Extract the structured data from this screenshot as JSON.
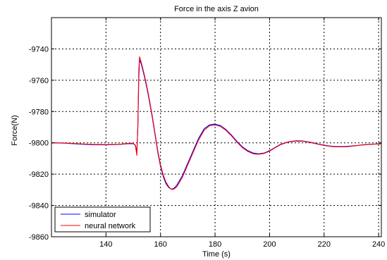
{
  "chart_data": {
    "type": "line",
    "title": "Force in the axis Z avion",
    "xlabel": "Time (s)",
    "ylabel": "Force(N)",
    "xlim": [
      120,
      241
    ],
    "ylim": [
      -9860,
      -9720
    ],
    "xticks": [
      140,
      160,
      180,
      200,
      220,
      240
    ],
    "yticks": [
      -9860,
      -9840,
      -9820,
      -9800,
      -9780,
      -9760,
      -9740
    ],
    "grid": true,
    "legend_position": "bottom-left",
    "series": [
      {
        "name": "simulator",
        "color": "#0000ff",
        "x": [
          120,
          125,
          130,
          135,
          140,
          145,
          148,
          150,
          150.8,
          151.3,
          151.7,
          152.0,
          152.3,
          152.6,
          153,
          154,
          155,
          156,
          157,
          158,
          159,
          160,
          161,
          162,
          163,
          164,
          165,
          166,
          168,
          170,
          172,
          174,
          176,
          178,
          180,
          182,
          184,
          186,
          188,
          190,
          192,
          194,
          196,
          198,
          200,
          202,
          204,
          206,
          208,
          210,
          212,
          214,
          216,
          218,
          220,
          222,
          224,
          226,
          228,
          230,
          232,
          234,
          236,
          238,
          240,
          241
        ],
        "y": [
          -9800,
          -9800.2,
          -9800.8,
          -9801.2,
          -9801.3,
          -9801,
          -9800.6,
          -9800.5,
          -9801.5,
          -9806,
          -9790,
          -9760,
          -9747,
          -9748,
          -9750,
          -9757,
          -9765,
          -9774,
          -9784,
          -9795,
          -9806,
          -9815,
          -9821.5,
          -9826,
          -9828.5,
          -9829.6,
          -9829,
          -9827,
          -9821,
          -9813,
          -9805,
          -9797,
          -9791,
          -9788.5,
          -9788,
          -9789,
          -9791.5,
          -9795,
          -9799,
          -9802.5,
          -9805,
          -9806.5,
          -9807,
          -9806.5,
          -9805,
          -9803,
          -9801,
          -9799.8,
          -9799,
          -9798.7,
          -9798.8,
          -9799.3,
          -9800,
          -9800.8,
          -9801.5,
          -9802,
          -9802.3,
          -9802.4,
          -9802.3,
          -9802,
          -9801.7,
          -9801.3,
          -9801,
          -9800.8,
          -9800.6,
          -9800.5
        ]
      },
      {
        "name": "neural network",
        "color": "#ff0000",
        "x": [
          120,
          125,
          130,
          135,
          140,
          145,
          148,
          150,
          150.8,
          151.3,
          151.7,
          152.0,
          152.3,
          152.6,
          153,
          154,
          155,
          156,
          157,
          158,
          159,
          160,
          161,
          162,
          163,
          164,
          165,
          166,
          168,
          170,
          172,
          174,
          176,
          178,
          180,
          182,
          184,
          186,
          188,
          190,
          192,
          194,
          196,
          198,
          200,
          202,
          204,
          206,
          208,
          210,
          212,
          214,
          216,
          218,
          220,
          222,
          224,
          226,
          228,
          230,
          232,
          234,
          236,
          238,
          240,
          241
        ],
        "y": [
          -9800,
          -9800.1,
          -9800.6,
          -9801,
          -9801.1,
          -9800.9,
          -9800.4,
          -9800.2,
          -9801.8,
          -9808,
          -9788,
          -9755,
          -9745,
          -9746.5,
          -9749,
          -9756,
          -9764,
          -9773,
          -9783,
          -9794,
          -9805,
          -9814,
          -9820.5,
          -9825,
          -9828,
          -9829.8,
          -9829.5,
          -9828,
          -9822,
          -9814,
          -9806,
          -9798,
          -9792,
          -9789,
          -9788.6,
          -9789.5,
          -9792,
          -9795.5,
          -9799.5,
          -9803,
          -9805.5,
          -9807,
          -9807.3,
          -9806.8,
          -9805.3,
          -9803.2,
          -9801.2,
          -9800,
          -9799.2,
          -9798.9,
          -9799,
          -9799.5,
          -9800.2,
          -9801,
          -9801.7,
          -9802.2,
          -9802.5,
          -9802.6,
          -9802.5,
          -9802.2,
          -9801.8,
          -9801.4,
          -9801.1,
          -9800.9,
          -9800.7,
          -9800.6
        ]
      }
    ]
  }
}
